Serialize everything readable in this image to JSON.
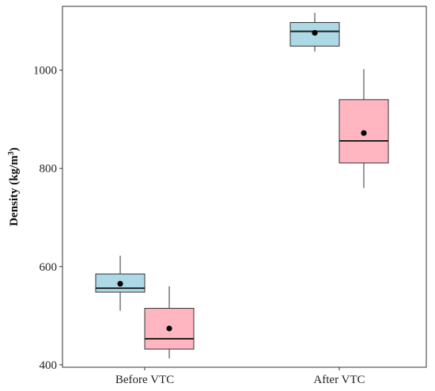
{
  "chart_data": {
    "type": "box",
    "title": "",
    "xlabel": "",
    "ylabel": "Density (kg/m",
    "ylabel_superscript": "3",
    "ylabel_suffix": ")",
    "ylim": [
      395,
      1130
    ],
    "yticks": [
      400,
      600,
      800,
      1000
    ],
    "categories": [
      "Before VTC",
      "After VTC"
    ],
    "series": [
      {
        "color": "#add8e6",
        "boxes": [
          {
            "whisker_low": 510,
            "q1": 548,
            "median": 556,
            "q3": 585,
            "whisker_high": 622,
            "mean": 565
          },
          {
            "whisker_low": 1038,
            "q1": 1049,
            "median": 1079,
            "q3": 1097,
            "whisker_high": 1117,
            "mean": 1076
          }
        ]
      },
      {
        "color": "#ffb6c1",
        "boxes": [
          {
            "whisker_low": 413,
            "q1": 432,
            "median": 453,
            "q3": 515,
            "whisker_high": 560,
            "mean": 474
          },
          {
            "whisker_low": 760,
            "q1": 811,
            "median": 856,
            "q3": 940,
            "whisker_high": 1002,
            "mean": 872
          }
        ]
      }
    ],
    "grid": false,
    "legend": "none"
  }
}
